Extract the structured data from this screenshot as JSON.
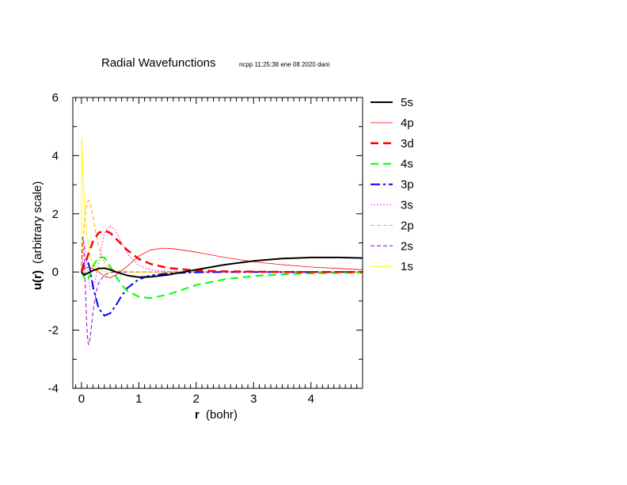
{
  "chart_data": {
    "type": "line",
    "title": "Radial Wavefunctions",
    "subtitle": "ncpp 11:25:38 ene 08 2020 dani",
    "xlabel_bold": "r",
    "xlabel_rest": "(bohr)",
    "ylabel_bold": "u(r)",
    "ylabel_rest": "(arbitrary scale)",
    "xlim": [
      -0.15,
      4.9
    ],
    "ylim": [
      -4,
      6
    ],
    "xticks": [
      0,
      1,
      2,
      3,
      4
    ],
    "yticks": [
      -4,
      -2,
      0,
      2,
      4,
      6
    ],
    "grid": false,
    "legend_position": "right",
    "series": [
      {
        "name": "5s",
        "color": "#000000",
        "dash": "solid",
        "width": 2,
        "x": [
          0.0,
          0.05,
          0.1,
          0.2,
          0.3,
          0.4,
          0.5,
          0.6,
          0.8,
          1.0,
          1.2,
          1.5,
          2.0,
          2.5,
          3.0,
          3.5,
          4.0,
          4.5,
          4.9
        ],
        "y": [
          0.0,
          -0.1,
          -0.05,
          0.05,
          0.12,
          0.13,
          0.08,
          0.0,
          -0.12,
          -0.18,
          -0.17,
          -0.1,
          0.08,
          0.25,
          0.38,
          0.46,
          0.5,
          0.5,
          0.48
        ]
      },
      {
        "name": "4p",
        "color": "#ff0000",
        "dash": "solid",
        "width": 0.8,
        "x": [
          0.0,
          0.05,
          0.1,
          0.2,
          0.3,
          0.4,
          0.5,
          0.6,
          0.8,
          1.0,
          1.2,
          1.4,
          1.6,
          2.0,
          2.5,
          3.0,
          3.5,
          4.0,
          4.5,
          4.9
        ],
        "y": [
          0.0,
          0.1,
          0.15,
          0.12,
          0.0,
          -0.15,
          -0.2,
          -0.1,
          0.2,
          0.55,
          0.75,
          0.82,
          0.8,
          0.68,
          0.5,
          0.35,
          0.25,
          0.17,
          0.12,
          0.08
        ]
      },
      {
        "name": "3d",
        "color": "#ff0000",
        "dash": "10,6",
        "width": 2.5,
        "x": [
          0.0,
          0.1,
          0.2,
          0.3,
          0.4,
          0.5,
          0.6,
          0.7,
          0.8,
          1.0,
          1.2,
          1.5,
          2.0,
          2.5,
          3.0,
          3.5,
          4.0,
          4.5,
          4.9
        ],
        "y": [
          0.0,
          0.5,
          1.05,
          1.35,
          1.42,
          1.35,
          1.15,
          0.95,
          0.75,
          0.45,
          0.28,
          0.14,
          0.05,
          0.02,
          0.01,
          0.0,
          0.0,
          0.0,
          0.0
        ]
      },
      {
        "name": "4s",
        "color": "#00ff00",
        "dash": "10,6",
        "width": 2,
        "x": [
          0.0,
          0.05,
          0.1,
          0.15,
          0.2,
          0.3,
          0.4,
          0.5,
          0.6,
          0.7,
          0.8,
          1.0,
          1.2,
          1.5,
          2.0,
          2.5,
          3.0,
          3.5,
          4.0,
          4.5,
          4.9
        ],
        "y": [
          0.0,
          -0.2,
          -0.3,
          -0.1,
          0.2,
          0.5,
          0.5,
          0.2,
          -0.15,
          -0.45,
          -0.65,
          -0.85,
          -0.9,
          -0.78,
          -0.45,
          -0.25,
          -0.14,
          -0.08,
          -0.05,
          -0.03,
          -0.02
        ]
      },
      {
        "name": "3p",
        "color": "#0000ff",
        "dash": "12,4,3,4",
        "width": 2,
        "x": [
          0.0,
          0.05,
          0.1,
          0.15,
          0.2,
          0.3,
          0.4,
          0.5,
          0.6,
          0.7,
          0.8,
          1.0,
          1.2,
          1.5,
          2.0,
          2.5,
          3.0,
          3.5,
          4.0,
          4.5,
          4.9
        ],
        "y": [
          0.0,
          0.35,
          0.45,
          0.1,
          -0.5,
          -1.25,
          -1.5,
          -1.42,
          -1.15,
          -0.82,
          -0.55,
          -0.25,
          -0.12,
          -0.05,
          -0.01,
          0.0,
          0.0,
          0.0,
          0.0,
          0.0,
          0.0
        ]
      },
      {
        "name": "3s",
        "color": "#ff00ff",
        "dash": "1.5,2.5",
        "width": 1,
        "x": [
          0.0,
          0.03,
          0.06,
          0.1,
          0.15,
          0.2,
          0.25,
          0.3,
          0.4,
          0.5,
          0.6,
          0.7,
          0.8,
          1.0,
          1.2,
          1.5,
          2.0,
          2.5,
          3.0,
          4.0,
          4.9
        ],
        "y": [
          0.0,
          0.7,
          0.9,
          0.2,
          -0.6,
          -0.55,
          -0.2,
          0.3,
          1.35,
          1.6,
          1.42,
          1.0,
          0.62,
          0.22,
          0.08,
          0.02,
          0.0,
          0.0,
          0.0,
          0.0,
          0.0
        ]
      },
      {
        "name": "2p",
        "color": "#ffa500",
        "dash": "5,3",
        "width": 1,
        "x": [
          0.0,
          0.03,
          0.06,
          0.1,
          0.13,
          0.16,
          0.2,
          0.25,
          0.3,
          0.35,
          0.4,
          0.5,
          0.6,
          0.8,
          1.0,
          1.5,
          2.0,
          3.0,
          4.0,
          4.9
        ],
        "y": [
          0.0,
          1.0,
          1.9,
          2.4,
          2.45,
          2.3,
          1.9,
          1.35,
          0.9,
          0.55,
          0.33,
          0.12,
          0.04,
          0.01,
          0.0,
          0.0,
          0.0,
          0.0,
          0.0,
          0.0
        ]
      },
      {
        "name": "2s",
        "color": "#9400d3",
        "dash": "5,3",
        "width": 1,
        "x": [
          0.0,
          0.02,
          0.04,
          0.06,
          0.08,
          0.1,
          0.12,
          0.14,
          0.16,
          0.2,
          0.25,
          0.3,
          0.4,
          0.5,
          0.6,
          0.8,
          1.0,
          1.5,
          2.0,
          3.0,
          4.0,
          4.9
        ],
        "y": [
          0.0,
          1.2,
          1.0,
          0.0,
          -1.2,
          -2.1,
          -2.5,
          -2.4,
          -2.1,
          -1.4,
          -0.75,
          -0.38,
          -0.1,
          -0.02,
          0.0,
          0.0,
          0.0,
          0.0,
          0.0,
          0.0,
          0.0,
          0.0
        ]
      },
      {
        "name": "1s",
        "color": "#ffff00",
        "dash": "solid",
        "width": 1,
        "x": [
          0.0,
          0.005,
          0.01,
          0.02,
          0.04,
          0.06,
          0.08,
          0.1,
          0.12,
          0.15,
          0.2,
          0.3,
          0.4,
          0.5,
          1.0,
          2.0,
          3.0,
          4.0,
          4.9
        ],
        "y": [
          0.0,
          4.6,
          4.3,
          3.7,
          2.8,
          2.1,
          1.55,
          1.15,
          0.85,
          0.55,
          0.25,
          0.05,
          0.01,
          0.0,
          0.0,
          0.0,
          0.0,
          0.0,
          0.0
        ]
      }
    ]
  }
}
